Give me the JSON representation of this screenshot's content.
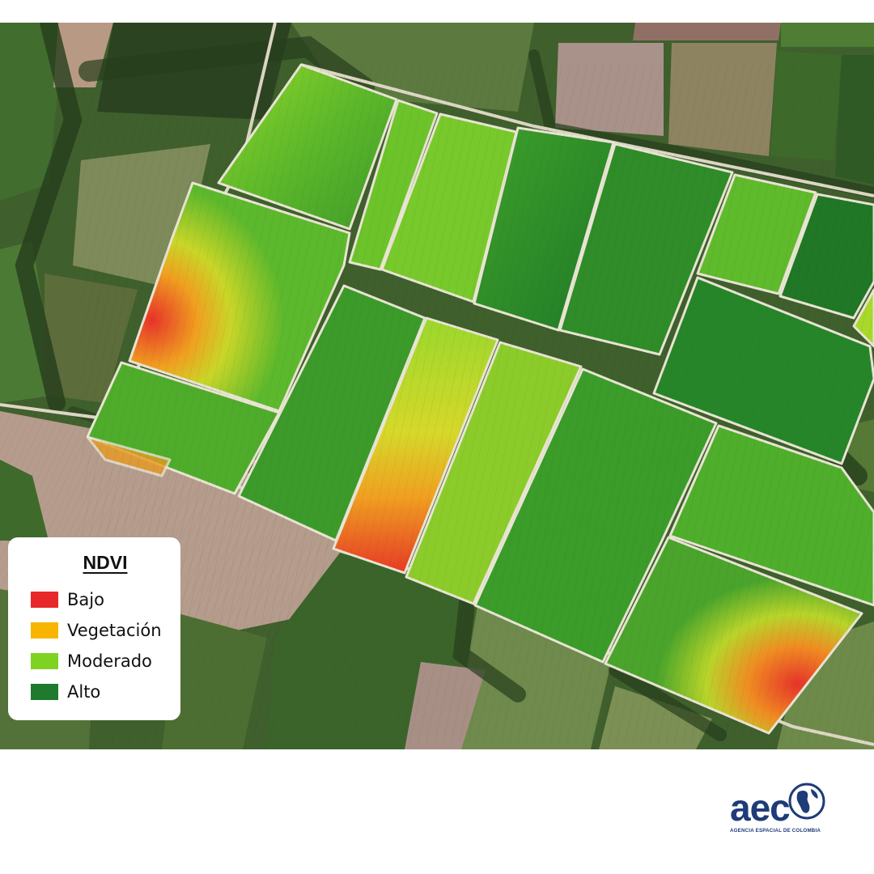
{
  "map": {
    "layer": "NDVI",
    "colors": {
      "bajo": "#e8272a",
      "vegetacion": "#f7b500",
      "moderado": "#7ed321",
      "alto": "#1e7a2c",
      "bare_soil": "#b59c8c",
      "crop_field": "#4f7d33",
      "tree_rows": "#2f4a24",
      "road": "#e9e4d3"
    }
  },
  "legend": {
    "title": "NDVI",
    "items": [
      {
        "label": "Bajo",
        "color": "#e8272a"
      },
      {
        "label": "Vegetación",
        "color": "#f7b500"
      },
      {
        "label": "Moderado",
        "color": "#7ed321"
      },
      {
        "label": "Alto",
        "color": "#1e7a2c"
      }
    ]
  },
  "logo": {
    "wordmark": "aec",
    "subtitle": "AGENCIA ESPACIAL DE COLOMBIA",
    "icon": "globe-icon",
    "color": "#1f3b78"
  }
}
